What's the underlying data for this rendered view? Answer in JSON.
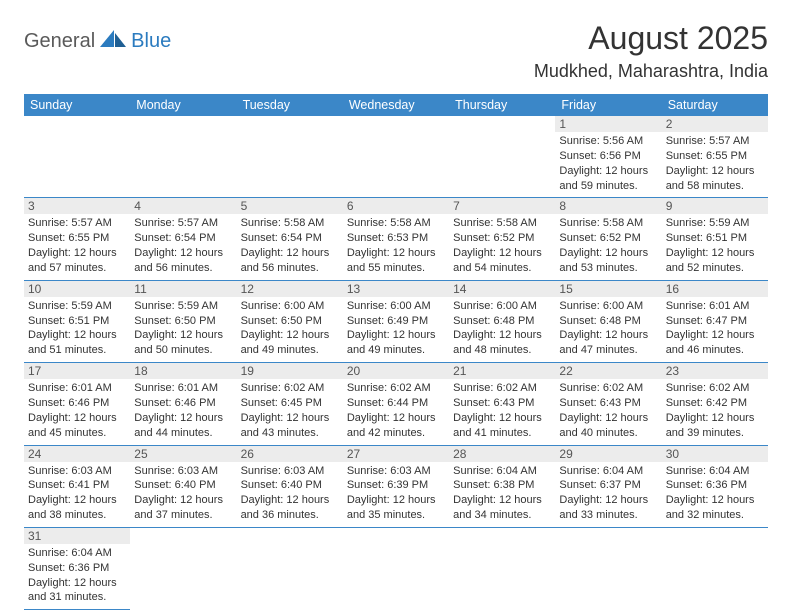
{
  "logo": {
    "text1": "General",
    "text2": "Blue"
  },
  "title": "August 2025",
  "location": "Mudkhed, Maharashtra, India",
  "colors": {
    "header_bg": "#3b87c8",
    "header_fg": "#ffffff",
    "daynum_bg": "#ececec",
    "border": "#3b87c8",
    "logo_gray": "#5a5a5a",
    "logo_blue": "#2b7bbf"
  },
  "dayHeaders": [
    "Sunday",
    "Monday",
    "Tuesday",
    "Wednesday",
    "Thursday",
    "Friday",
    "Saturday"
  ],
  "grid": [
    [
      null,
      null,
      null,
      null,
      null,
      {
        "n": "1",
        "sr": "Sunrise: 5:56 AM",
        "ss": "Sunset: 6:56 PM",
        "d1": "Daylight: 12 hours",
        "d2": "and 59 minutes."
      },
      {
        "n": "2",
        "sr": "Sunrise: 5:57 AM",
        "ss": "Sunset: 6:55 PM",
        "d1": "Daylight: 12 hours",
        "d2": "and 58 minutes."
      }
    ],
    [
      {
        "n": "3",
        "sr": "Sunrise: 5:57 AM",
        "ss": "Sunset: 6:55 PM",
        "d1": "Daylight: 12 hours",
        "d2": "and 57 minutes."
      },
      {
        "n": "4",
        "sr": "Sunrise: 5:57 AM",
        "ss": "Sunset: 6:54 PM",
        "d1": "Daylight: 12 hours",
        "d2": "and 56 minutes."
      },
      {
        "n": "5",
        "sr": "Sunrise: 5:58 AM",
        "ss": "Sunset: 6:54 PM",
        "d1": "Daylight: 12 hours",
        "d2": "and 56 minutes."
      },
      {
        "n": "6",
        "sr": "Sunrise: 5:58 AM",
        "ss": "Sunset: 6:53 PM",
        "d1": "Daylight: 12 hours",
        "d2": "and 55 minutes."
      },
      {
        "n": "7",
        "sr": "Sunrise: 5:58 AM",
        "ss": "Sunset: 6:52 PM",
        "d1": "Daylight: 12 hours",
        "d2": "and 54 minutes."
      },
      {
        "n": "8",
        "sr": "Sunrise: 5:58 AM",
        "ss": "Sunset: 6:52 PM",
        "d1": "Daylight: 12 hours",
        "d2": "and 53 minutes."
      },
      {
        "n": "9",
        "sr": "Sunrise: 5:59 AM",
        "ss": "Sunset: 6:51 PM",
        "d1": "Daylight: 12 hours",
        "d2": "and 52 minutes."
      }
    ],
    [
      {
        "n": "10",
        "sr": "Sunrise: 5:59 AM",
        "ss": "Sunset: 6:51 PM",
        "d1": "Daylight: 12 hours",
        "d2": "and 51 minutes."
      },
      {
        "n": "11",
        "sr": "Sunrise: 5:59 AM",
        "ss": "Sunset: 6:50 PM",
        "d1": "Daylight: 12 hours",
        "d2": "and 50 minutes."
      },
      {
        "n": "12",
        "sr": "Sunrise: 6:00 AM",
        "ss": "Sunset: 6:50 PM",
        "d1": "Daylight: 12 hours",
        "d2": "and 49 minutes."
      },
      {
        "n": "13",
        "sr": "Sunrise: 6:00 AM",
        "ss": "Sunset: 6:49 PM",
        "d1": "Daylight: 12 hours",
        "d2": "and 49 minutes."
      },
      {
        "n": "14",
        "sr": "Sunrise: 6:00 AM",
        "ss": "Sunset: 6:48 PM",
        "d1": "Daylight: 12 hours",
        "d2": "and 48 minutes."
      },
      {
        "n": "15",
        "sr": "Sunrise: 6:00 AM",
        "ss": "Sunset: 6:48 PM",
        "d1": "Daylight: 12 hours",
        "d2": "and 47 minutes."
      },
      {
        "n": "16",
        "sr": "Sunrise: 6:01 AM",
        "ss": "Sunset: 6:47 PM",
        "d1": "Daylight: 12 hours",
        "d2": "and 46 minutes."
      }
    ],
    [
      {
        "n": "17",
        "sr": "Sunrise: 6:01 AM",
        "ss": "Sunset: 6:46 PM",
        "d1": "Daylight: 12 hours",
        "d2": "and 45 minutes."
      },
      {
        "n": "18",
        "sr": "Sunrise: 6:01 AM",
        "ss": "Sunset: 6:46 PM",
        "d1": "Daylight: 12 hours",
        "d2": "and 44 minutes."
      },
      {
        "n": "19",
        "sr": "Sunrise: 6:02 AM",
        "ss": "Sunset: 6:45 PM",
        "d1": "Daylight: 12 hours",
        "d2": "and 43 minutes."
      },
      {
        "n": "20",
        "sr": "Sunrise: 6:02 AM",
        "ss": "Sunset: 6:44 PM",
        "d1": "Daylight: 12 hours",
        "d2": "and 42 minutes."
      },
      {
        "n": "21",
        "sr": "Sunrise: 6:02 AM",
        "ss": "Sunset: 6:43 PM",
        "d1": "Daylight: 12 hours",
        "d2": "and 41 minutes."
      },
      {
        "n": "22",
        "sr": "Sunrise: 6:02 AM",
        "ss": "Sunset: 6:43 PM",
        "d1": "Daylight: 12 hours",
        "d2": "and 40 minutes."
      },
      {
        "n": "23",
        "sr": "Sunrise: 6:02 AM",
        "ss": "Sunset: 6:42 PM",
        "d1": "Daylight: 12 hours",
        "d2": "and 39 minutes."
      }
    ],
    [
      {
        "n": "24",
        "sr": "Sunrise: 6:03 AM",
        "ss": "Sunset: 6:41 PM",
        "d1": "Daylight: 12 hours",
        "d2": "and 38 minutes."
      },
      {
        "n": "25",
        "sr": "Sunrise: 6:03 AM",
        "ss": "Sunset: 6:40 PM",
        "d1": "Daylight: 12 hours",
        "d2": "and 37 minutes."
      },
      {
        "n": "26",
        "sr": "Sunrise: 6:03 AM",
        "ss": "Sunset: 6:40 PM",
        "d1": "Daylight: 12 hours",
        "d2": "and 36 minutes."
      },
      {
        "n": "27",
        "sr": "Sunrise: 6:03 AM",
        "ss": "Sunset: 6:39 PM",
        "d1": "Daylight: 12 hours",
        "d2": "and 35 minutes."
      },
      {
        "n": "28",
        "sr": "Sunrise: 6:04 AM",
        "ss": "Sunset: 6:38 PM",
        "d1": "Daylight: 12 hours",
        "d2": "and 34 minutes."
      },
      {
        "n": "29",
        "sr": "Sunrise: 6:04 AM",
        "ss": "Sunset: 6:37 PM",
        "d1": "Daylight: 12 hours",
        "d2": "and 33 minutes."
      },
      {
        "n": "30",
        "sr": "Sunrise: 6:04 AM",
        "ss": "Sunset: 6:36 PM",
        "d1": "Daylight: 12 hours",
        "d2": "and 32 minutes."
      }
    ],
    [
      {
        "n": "31",
        "sr": "Sunrise: 6:04 AM",
        "ss": "Sunset: 6:36 PM",
        "d1": "Daylight: 12 hours",
        "d2": "and 31 minutes."
      },
      null,
      null,
      null,
      null,
      null,
      null
    ]
  ]
}
